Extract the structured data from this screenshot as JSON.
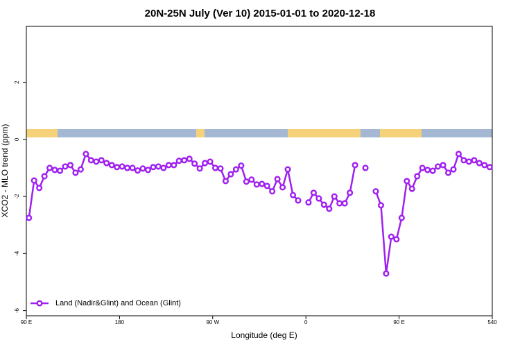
{
  "chart_data": {
    "type": "line",
    "title": "20N-25N July (Ver 10)   2015-01-01 to 2020-12-18",
    "xlabel": "Longitude (deg E)",
    "ylabel": "XCO2 - MLO trend (ppm)",
    "xlim": [
      90,
      540
    ],
    "ylim": [
      -6.18,
      3.96
    ],
    "xticks": [
      {
        "value": 90,
        "label": "90 E"
      },
      180,
      {
        "value": 270,
        "label": "90 W"
      },
      {
        "value": 360,
        "label": "0"
      },
      {
        "value": 450,
        "label": "90 E"
      },
      540
    ],
    "yticks": [
      -6,
      -4,
      -2,
      0,
      2
    ],
    "legend": "bottomleft",
    "x": [
      92.5,
      97.5,
      102.5,
      107.5,
      112.5,
      117.5,
      122.5,
      127.5,
      132.5,
      137.5,
      142.5,
      147.5,
      152.5,
      157.5,
      162.5,
      167.5,
      172.5,
      177.5,
      182.5,
      187.5,
      192.5,
      197.5,
      202.5,
      207.5,
      212.5,
      217.5,
      222.5,
      227.5,
      232.5,
      237.5,
      242.5,
      247.5,
      252.5,
      257.5,
      262.5,
      267.5,
      272.5,
      277.5,
      282.5,
      287.5,
      292.5,
      297.5,
      302.5,
      307.5,
      312.5,
      317.5,
      322.5,
      327.5,
      332.5,
      337.5,
      342.5,
      347.5,
      352.5,
      357.5,
      362.5,
      367.5,
      372.5,
      377.5,
      382.5,
      387.5,
      392.5,
      397.5,
      402.5,
      407.5,
      412.5,
      417.5,
      422.5,
      427.5,
      432.5,
      437.5,
      442.5,
      447.5,
      452.5,
      457.5,
      462.5,
      467.5,
      472.5,
      477.5,
      482.5,
      487.5,
      492.5,
      497.5,
      502.5,
      507.5,
      512.5,
      517.5,
      522.5,
      527.5,
      532.5,
      537.5
    ],
    "series": [
      {
        "name": "Land (Nadir&Glint) and Ocean (Glint)",
        "color": "#a020f0",
        "values": [
          -2.75,
          -1.44,
          -1.7,
          -1.29,
          -1.0,
          -1.07,
          -1.1,
          -0.95,
          -0.9,
          -1.17,
          -1.05,
          -0.51,
          -0.73,
          -0.78,
          -0.73,
          -0.83,
          -0.9,
          -0.97,
          -0.95,
          -1.0,
          -1.0,
          -1.09,
          -1.02,
          -1.07,
          -0.97,
          -0.95,
          -1.0,
          -0.9,
          -0.9,
          -0.75,
          -0.73,
          -0.68,
          -0.85,
          -1.02,
          -0.83,
          -0.78,
          -1.0,
          -1.02,
          -1.46,
          -1.22,
          -1.05,
          -0.92,
          -1.48,
          -1.41,
          -1.58,
          -1.56,
          -1.63,
          -1.82,
          -1.39,
          -1.68,
          -1.05,
          -1.95,
          -2.14,
          null,
          -2.21,
          -1.87,
          -2.07,
          -2.29,
          -2.43,
          -2.0,
          -2.24,
          -2.24,
          -1.87,
          -0.9,
          null,
          -1.0,
          null,
          -1.82,
          -2.31,
          -4.7,
          -3.41,
          -3.5,
          -2.75,
          -1.46,
          -1.73,
          -1.29,
          -1.0,
          -1.07,
          -1.1,
          -0.95,
          -0.9,
          -1.17,
          -1.05,
          -0.51,
          -0.73,
          -0.78,
          -0.73,
          -0.83,
          -0.9,
          -0.97
        ]
      }
    ]
  }
}
